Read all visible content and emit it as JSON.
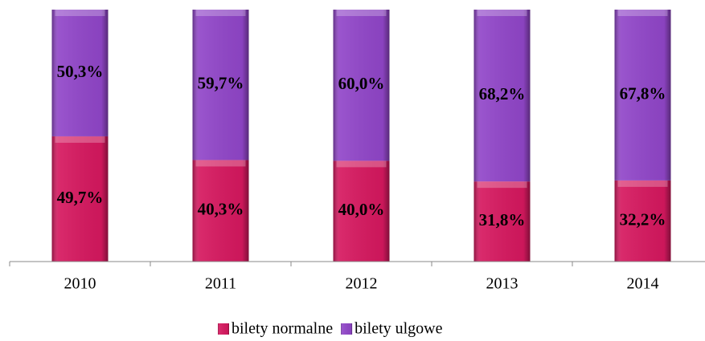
{
  "chart_data": {
    "type": "stacked_bar",
    "categories": [
      "2010",
      "2011",
      "2012",
      "2013",
      "2014"
    ],
    "series": [
      {
        "name": "bilety normalne",
        "color": "#d6185f",
        "values": [
          49.7,
          40.3,
          40.0,
          31.8,
          32.2
        ],
        "value_labels": [
          "49,7%",
          "40,3%",
          "40,0%",
          "31,8%",
          "32,2%"
        ]
      },
      {
        "name": "bilety ulgowe",
        "color": "#9146c9",
        "values": [
          50.3,
          59.7,
          60.0,
          68.2,
          67.8
        ],
        "value_labels": [
          "50,3%",
          "59,7%",
          "60,0%",
          "68,2%",
          "67,8%"
        ]
      }
    ],
    "ylim": [
      0,
      100
    ],
    "legend": "bottom"
  }
}
